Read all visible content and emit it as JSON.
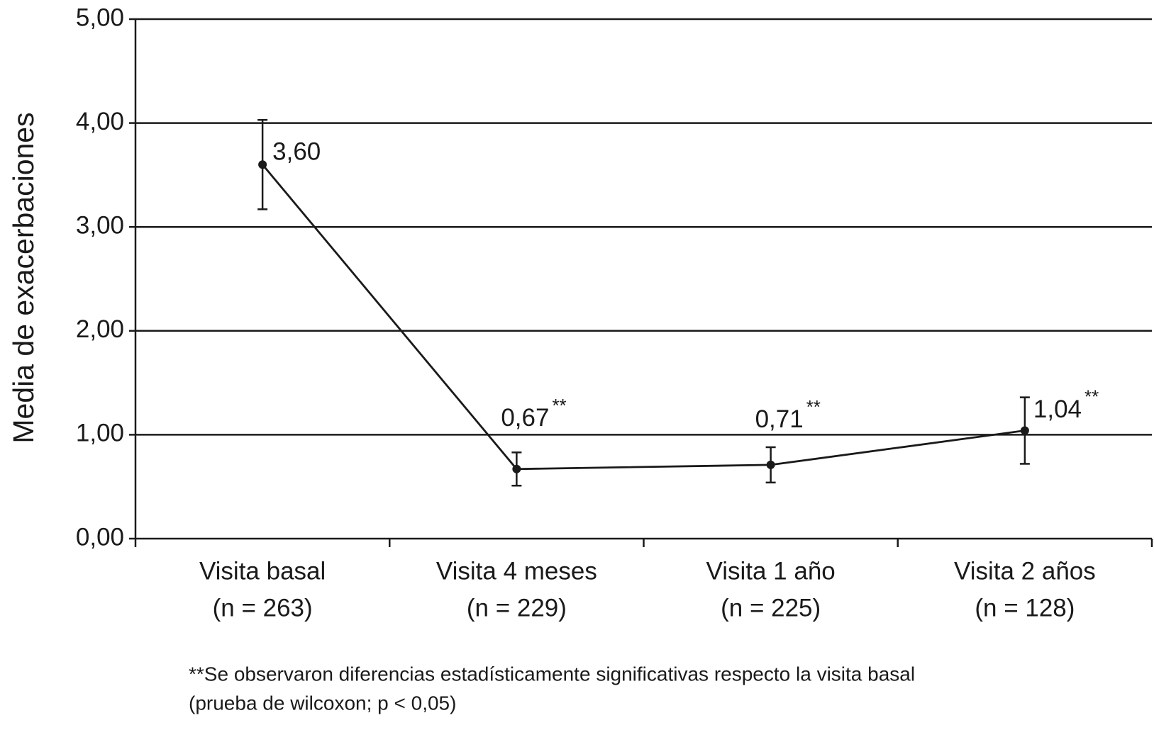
{
  "chart_data": {
    "type": "line",
    "y_label": "Media de exacerbaciones",
    "categories": [
      [
        "Visita basal",
        "(n = 263)"
      ],
      [
        "Visita 4 meses",
        "(n = 229)"
      ],
      [
        "Visita 1 año",
        "(n = 225)"
      ],
      [
        "Visita 2 años",
        "(n = 128)"
      ]
    ],
    "series": [
      {
        "color": "#1a1a1a",
        "values": [
          3.6,
          0.67,
          0.71,
          1.04
        ],
        "value_labels": [
          "3,60",
          "0,67",
          "0,71",
          "1,04"
        ],
        "errors": [
          0.43,
          0.16,
          0.17,
          0.32
        ],
        "markers": [
          null,
          "**",
          "**",
          "**"
        ]
      }
    ],
    "ylim": [
      0,
      5
    ],
    "yticks": [
      {
        "value": 0,
        "label": "0,00"
      },
      {
        "value": 1,
        "label": "1,00"
      },
      {
        "value": 2,
        "label": "2,00"
      },
      {
        "value": 3,
        "label": "3,00"
      },
      {
        "value": 4,
        "label": "4,00"
      },
      {
        "value": 5,
        "label": "5,00"
      }
    ],
    "grid": true,
    "footnote": [
      "**Se observaron diferencias estadísticamente significativas respecto la visita basal",
      "(prueba de wilcoxon; p < 0,05)"
    ]
  }
}
